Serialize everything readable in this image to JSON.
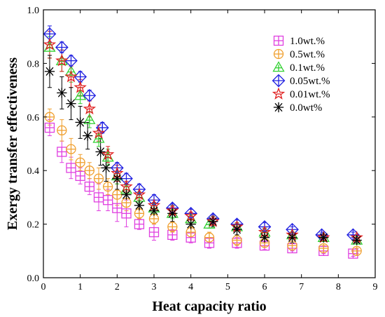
{
  "chart_data": {
    "type": "scatter",
    "xlabel": "Heat capacity ratio",
    "ylabel": "Exergy transfer effectiveness",
    "xlim": [
      0,
      9
    ],
    "ylim": [
      0.0,
      1.0
    ],
    "xticks": [
      0,
      1,
      2,
      3,
      4,
      5,
      6,
      7,
      8,
      9
    ],
    "yticks": [
      0.0,
      0.2,
      0.4,
      0.6,
      0.8,
      1.0
    ],
    "xtick_labels": [
      "0",
      "1",
      "2",
      "3",
      "4",
      "5",
      "6",
      "7",
      "8",
      "9"
    ],
    "ytick_labels": [
      "0.0",
      "0.2",
      "0.4",
      "0.6",
      "0.8",
      "1.0"
    ],
    "grid": false,
    "legend_position": "top-right",
    "series": [
      {
        "name": "1.0wt.%",
        "marker": "boxplus",
        "color": "#e040e0",
        "points": [
          [
            0.17,
            0.56,
            0.03
          ],
          [
            0.5,
            0.47,
            0.04
          ],
          [
            0.75,
            0.41,
            0.04
          ],
          [
            1.0,
            0.38,
            0.03
          ],
          [
            1.25,
            0.34,
            0.03
          ],
          [
            1.5,
            0.3,
            0.05
          ],
          [
            1.75,
            0.29,
            0.04
          ],
          [
            2.0,
            0.26,
            0.05
          ],
          [
            2.25,
            0.24,
            0.05
          ],
          [
            2.6,
            0.2,
            0.02
          ],
          [
            3.0,
            0.17,
            0.03
          ],
          [
            3.5,
            0.16,
            0.02
          ],
          [
            4.0,
            0.15,
            0.02
          ],
          [
            4.5,
            0.13,
            0.02
          ],
          [
            5.25,
            0.13,
            0.02
          ],
          [
            6.0,
            0.12,
            0.015
          ],
          [
            6.75,
            0.11,
            0.01
          ],
          [
            7.6,
            0.1,
            0.01
          ],
          [
            8.4,
            0.09,
            0.01
          ]
        ]
      },
      {
        "name": "0.5wt.%",
        "marker": "circleplus",
        "color": "#f0a030",
        "points": [
          [
            0.17,
            0.6,
            0.03
          ],
          [
            0.5,
            0.55,
            0.04
          ],
          [
            0.75,
            0.48,
            0.04
          ],
          [
            1.0,
            0.43,
            0.03
          ],
          [
            1.25,
            0.4,
            0.03
          ],
          [
            1.5,
            0.37,
            0.04
          ],
          [
            1.75,
            0.34,
            0.03
          ],
          [
            2.0,
            0.31,
            0.04
          ],
          [
            2.25,
            0.28,
            0.03
          ],
          [
            2.6,
            0.24,
            0.02
          ],
          [
            3.0,
            0.22,
            0.02
          ],
          [
            3.5,
            0.19,
            0.02
          ],
          [
            4.0,
            0.17,
            0.02
          ],
          [
            4.5,
            0.15,
            0.02
          ],
          [
            5.25,
            0.14,
            0.02
          ],
          [
            6.0,
            0.13,
            0.015
          ],
          [
            6.75,
            0.12,
            0.01
          ],
          [
            7.6,
            0.11,
            0.01
          ],
          [
            8.5,
            0.1,
            0.01
          ]
        ]
      },
      {
        "name": "0.1wt.%",
        "marker": "triangle",
        "color": "#30d030",
        "points": [
          [
            0.17,
            0.86,
            0.04
          ],
          [
            0.5,
            0.81,
            0.04
          ],
          [
            0.75,
            0.77,
            0.04
          ],
          [
            1.0,
            0.68,
            0.03
          ],
          [
            1.25,
            0.59,
            0.03
          ],
          [
            1.5,
            0.52,
            0.03
          ],
          [
            1.75,
            0.45,
            0.03
          ],
          [
            2.0,
            0.38,
            0.03
          ],
          [
            2.25,
            0.33,
            0.02
          ],
          [
            2.6,
            0.3,
            0.02
          ],
          [
            3.0,
            0.26,
            0.02
          ],
          [
            3.5,
            0.24,
            0.02
          ],
          [
            4.0,
            0.22,
            0.02
          ],
          [
            4.5,
            0.2,
            0.015
          ],
          [
            5.25,
            0.19,
            0.015
          ],
          [
            6.0,
            0.17,
            0.015
          ],
          [
            6.75,
            0.16,
            0.01
          ],
          [
            7.6,
            0.15,
            0.01
          ],
          [
            8.5,
            0.14,
            0.01
          ]
        ]
      },
      {
        "name": "0.05wt.%",
        "marker": "diamondplus",
        "color": "#2020e0",
        "points": [
          [
            0.17,
            0.91,
            0.03
          ],
          [
            0.5,
            0.86,
            0.02
          ],
          [
            0.75,
            0.81,
            0.02
          ],
          [
            1.0,
            0.75,
            0.02
          ],
          [
            1.25,
            0.68,
            0.02
          ],
          [
            1.6,
            0.56,
            0.02
          ],
          [
            2.0,
            0.41,
            0.02
          ],
          [
            2.25,
            0.37,
            0.02
          ],
          [
            2.6,
            0.33,
            0.02
          ],
          [
            3.0,
            0.29,
            0.02
          ],
          [
            3.5,
            0.26,
            0.015
          ],
          [
            4.0,
            0.24,
            0.015
          ],
          [
            4.6,
            0.22,
            0.015
          ],
          [
            5.25,
            0.2,
            0.015
          ],
          [
            6.0,
            0.19,
            0.015
          ],
          [
            6.75,
            0.18,
            0.01
          ],
          [
            7.55,
            0.16,
            0.01
          ],
          [
            8.4,
            0.16,
            0.01
          ]
        ]
      },
      {
        "name": "0.01wt.%",
        "marker": "star",
        "color": "#e02020",
        "points": [
          [
            0.17,
            0.87,
            0.05
          ],
          [
            0.5,
            0.81,
            0.04
          ],
          [
            0.75,
            0.75,
            0.04
          ],
          [
            1.0,
            0.71,
            0.03
          ],
          [
            1.25,
            0.63,
            0.03
          ],
          [
            1.5,
            0.54,
            0.03
          ],
          [
            1.75,
            0.46,
            0.03
          ],
          [
            2.0,
            0.39,
            0.03
          ],
          [
            2.25,
            0.34,
            0.02
          ],
          [
            2.6,
            0.31,
            0.02
          ],
          [
            3.0,
            0.27,
            0.02
          ],
          [
            3.5,
            0.25,
            0.015
          ],
          [
            4.0,
            0.23,
            0.015
          ],
          [
            4.6,
            0.21,
            0.015
          ],
          [
            5.25,
            0.19,
            0.015
          ],
          [
            6.0,
            0.17,
            0.015
          ],
          [
            6.75,
            0.16,
            0.01
          ],
          [
            7.6,
            0.15,
            0.01
          ],
          [
            8.5,
            0.15,
            0.01
          ]
        ]
      },
      {
        "name": "0.0wt%",
        "marker": "asterisk",
        "color": "#000000",
        "points": [
          [
            0.17,
            0.77,
            0.06
          ],
          [
            0.5,
            0.69,
            0.06
          ],
          [
            0.75,
            0.65,
            0.06
          ],
          [
            1.0,
            0.58,
            0.06
          ],
          [
            1.2,
            0.53,
            0.05
          ],
          [
            1.55,
            0.47,
            0.05
          ],
          [
            1.7,
            0.41,
            0.05
          ],
          [
            2.0,
            0.37,
            0.04
          ],
          [
            2.25,
            0.31,
            0.03
          ],
          [
            2.6,
            0.27,
            0.03
          ],
          [
            3.0,
            0.25,
            0.03
          ],
          [
            3.5,
            0.24,
            0.03
          ],
          [
            4.0,
            0.2,
            0.03
          ],
          [
            4.6,
            0.21,
            0.02
          ],
          [
            5.25,
            0.18,
            0.02
          ],
          [
            6.0,
            0.15,
            0.02
          ],
          [
            6.75,
            0.15,
            0.02
          ],
          [
            7.6,
            0.15,
            0.01
          ],
          [
            8.5,
            0.14,
            0.01
          ]
        ]
      }
    ]
  }
}
